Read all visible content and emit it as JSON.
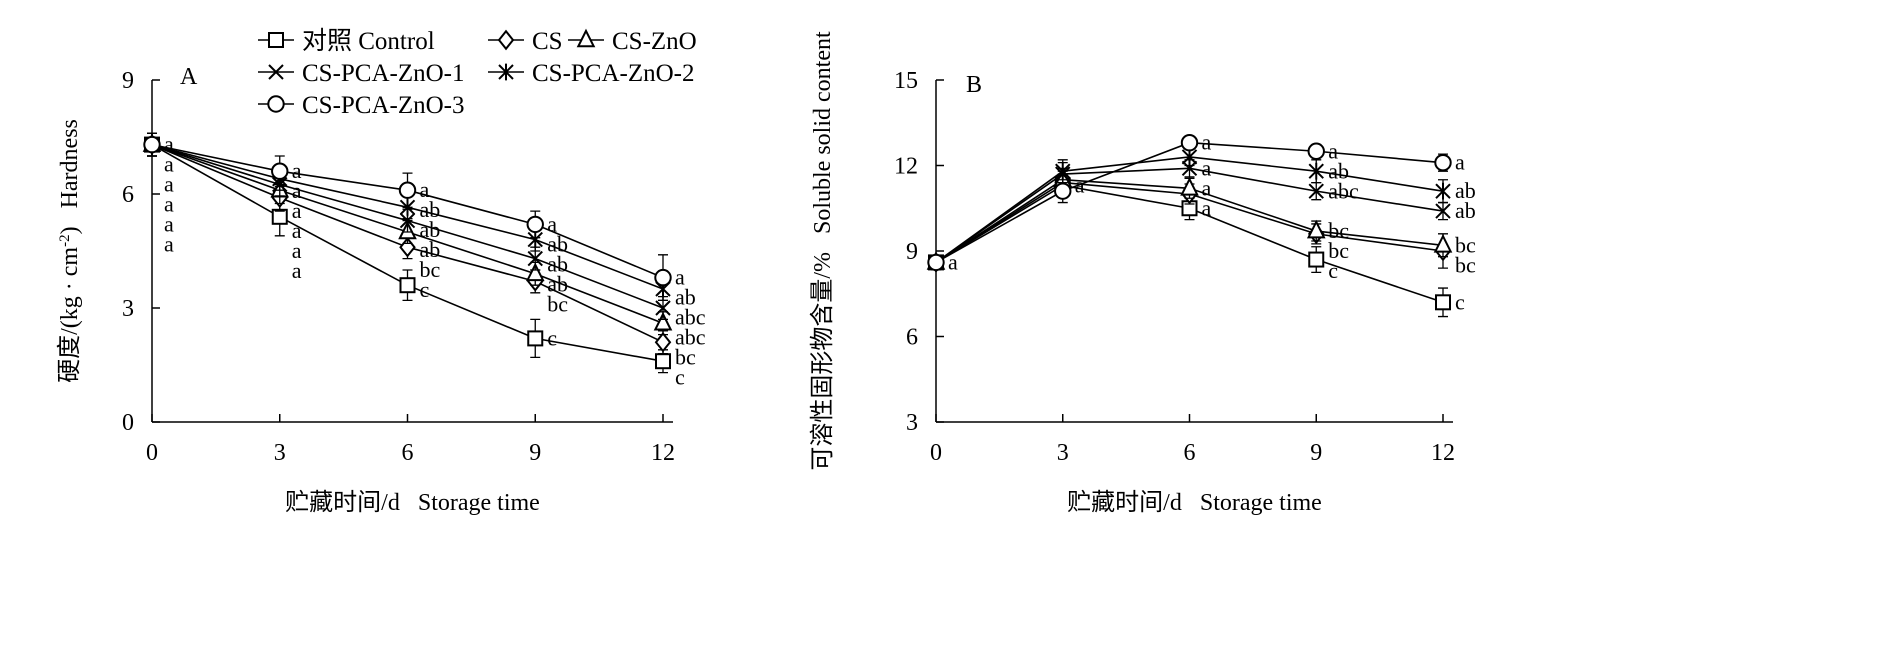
{
  "chart_data": [
    {
      "panel": "A",
      "type": "line",
      "ylabel_cn": "硬度/(kg · cm",
      "ylabel_sup": "-2",
      "ylabel_end": ")",
      "ylabel_en": "Hardness",
      "xlabel_cn": "贮藏时间/d",
      "xlabel_en": "Storage time",
      "x": [
        0,
        3,
        6,
        9,
        12
      ],
      "xlim": [
        0,
        12
      ],
      "ylim": [
        0,
        9
      ],
      "yticks": [
        0,
        3,
        6,
        9
      ],
      "grid": false,
      "legend_position": "top",
      "series": [
        {
          "name": "对照 Control",
          "marker": "square",
          "values": [
            7.3,
            5.4,
            3.6,
            2.2,
            1.6
          ],
          "errors": [
            0.3,
            0.5,
            0.4,
            0.5,
            0.3
          ],
          "labels": [
            "a",
            "a",
            "c",
            "c",
            "c"
          ]
        },
        {
          "name": "CS",
          "marker": "diamond",
          "values": [
            7.3,
            5.9,
            4.6,
            3.7,
            2.1
          ],
          "errors": [
            0.3,
            0.35,
            0.3,
            0.3,
            0.3
          ],
          "labels": [
            "a",
            "a",
            "bc",
            "bc",
            "bc"
          ]
        },
        {
          "name": "CS-ZnO",
          "marker": "triangle",
          "values": [
            7.3,
            6.1,
            5.0,
            3.9,
            2.6
          ],
          "errors": [
            0.3,
            0.35,
            0.3,
            0.3,
            0.3
          ],
          "labels": [
            "a",
            "a",
            "ab",
            "ab",
            "abc"
          ]
        },
        {
          "name": "CS-PCA-ZnO-1",
          "marker": "x",
          "values": [
            7.3,
            6.25,
            5.3,
            4.3,
            3.0
          ],
          "errors": [
            0.3,
            0.3,
            0.3,
            0.3,
            0.3
          ],
          "labels": [
            "a",
            "a",
            "ab",
            "ab",
            "abc"
          ]
        },
        {
          "name": "CS-PCA-ZnO-2",
          "marker": "star",
          "values": [
            7.3,
            6.4,
            5.65,
            4.8,
            3.5
          ],
          "errors": [
            0.3,
            0.3,
            0.3,
            0.3,
            0.3
          ],
          "labels": [
            "a",
            "a",
            "ab",
            "ab",
            "ab"
          ]
        },
        {
          "name": "CS-PCA-ZnO-3",
          "marker": "circle",
          "values": [
            7.3,
            6.6,
            6.1,
            5.2,
            3.8
          ],
          "errors": [
            0.3,
            0.4,
            0.45,
            0.35,
            0.6
          ],
          "labels": [
            "a",
            "a",
            "a",
            "a",
            "a"
          ]
        }
      ]
    },
    {
      "panel": "B",
      "type": "line",
      "ylabel_cn": "可溶性固形物含量/%",
      "ylabel_en": "Soluble solid content",
      "xlabel_cn": "贮藏时间/d",
      "xlabel_en": "Storage time",
      "x": [
        0,
        3,
        6,
        9,
        12
      ],
      "xlim": [
        0,
        12
      ],
      "ylim": [
        3,
        15
      ],
      "yticks": [
        3,
        6,
        9,
        12,
        15
      ],
      "grid": false,
      "series": [
        {
          "name": "对照 Control",
          "marker": "square",
          "values": [
            8.6,
            11.3,
            10.5,
            8.7,
            7.2
          ],
          "errors": [
            0.25,
            0.4,
            0.4,
            0.45,
            0.5
          ],
          "labels": [
            "a",
            "a",
            "a",
            "c",
            "c"
          ]
        },
        {
          "name": "CS",
          "marker": "diamond",
          "values": [
            8.6,
            11.4,
            11.0,
            9.6,
            9.0
          ],
          "errors": [
            0.25,
            0.4,
            0.35,
            0.35,
            0.6
          ],
          "labels": [
            "",
            "",
            "",
            "bc",
            "bc"
          ]
        },
        {
          "name": "CS-ZnO",
          "marker": "triangle",
          "values": [
            8.6,
            11.5,
            11.2,
            9.7,
            9.2
          ],
          "errors": [
            0.25,
            0.4,
            0.35,
            0.35,
            0.4
          ],
          "labels": [
            "",
            "",
            "a",
            "bc",
            "bc"
          ]
        },
        {
          "name": "CS-PCA-ZnO-1",
          "marker": "x",
          "values": [
            8.6,
            11.7,
            11.9,
            11.1,
            10.4
          ],
          "errors": [
            0.25,
            0.4,
            0.3,
            0.3,
            0.3
          ],
          "labels": [
            "",
            "",
            "a",
            "abc",
            "ab"
          ]
        },
        {
          "name": "CS-PCA-ZnO-2",
          "marker": "star",
          "values": [
            8.6,
            11.8,
            12.3,
            11.8,
            11.1
          ],
          "errors": [
            0.25,
            0.4,
            0.3,
            0.4,
            0.4
          ],
          "labels": [
            "",
            "",
            "",
            "ab",
            "ab"
          ]
        },
        {
          "name": "CS-PCA-ZnO-3",
          "marker": "circle",
          "values": [
            8.6,
            11.1,
            12.8,
            12.5,
            12.1
          ],
          "errors": [
            0.25,
            0.4,
            0.2,
            0.2,
            0.3
          ],
          "labels": [
            "",
            "",
            "a",
            "a",
            "a"
          ]
        }
      ]
    }
  ]
}
